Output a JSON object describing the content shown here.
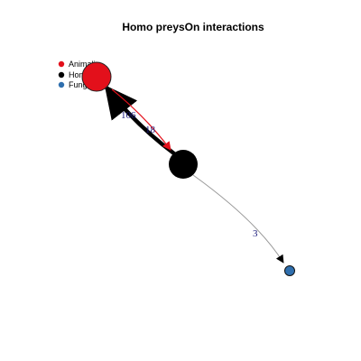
{
  "title": "Homo preysOn interactions",
  "legend": [
    {
      "label": "Animalia",
      "color": "#e3101b"
    },
    {
      "label": "Homo",
      "color": "#000000"
    },
    {
      "label": "Fungi",
      "color": "#2f6fae"
    }
  ],
  "nodes": [
    {
      "id": "animalia",
      "group": "Animalia",
      "color": "#e3101b"
    },
    {
      "id": "homo",
      "group": "Homo",
      "color": "#000000"
    },
    {
      "id": "fungi",
      "group": "Fungi",
      "color": "#2f6fae"
    }
  ],
  "edges": [
    {
      "from": "homo",
      "to": "animalia",
      "label": "106"
    },
    {
      "from": "animalia",
      "to": "homo",
      "label": "18"
    },
    {
      "from": "homo",
      "to": "fungi",
      "label": "3"
    }
  ]
}
